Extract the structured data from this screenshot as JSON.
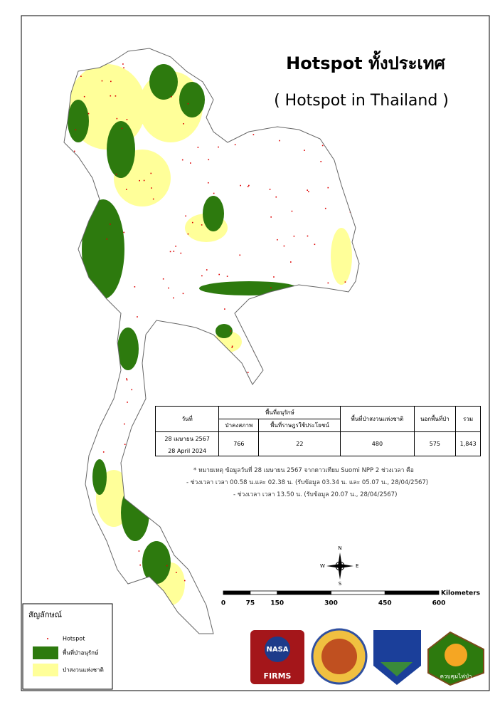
{
  "header": {
    "title": "Hotspot ทั้งประเทศ",
    "subtitle": "( Hotspot in Thailand )"
  },
  "table": {
    "headers": {
      "date": "วันที่",
      "conservation": "พื้นที่อนุรักษ์",
      "intact_forest": "ป่าคงสภาพ",
      "people_use": "พื้นที่ราษฎรใช้ประโยชน์",
      "reserve": "พื้นที่ป่าสงวนแห่งชาติ",
      "outside": "นอกพื้นที่ป่า",
      "total": "รวม"
    },
    "row": {
      "date_th": "28 เมษายน 2567",
      "date_en": "28 April 2024",
      "intact_forest": "766",
      "people_use": "22",
      "reserve": "480",
      "outside": "575",
      "total": "1,843"
    }
  },
  "notes": [
    "* หมายเหตุ ข้อมูลวันที่ 28 เมษายน 2567 จากดาวเทียม Suomi NPP 2 ช่วงเวลา คือ",
    "- ช่วงเวลา เวลา 00.58 น.และ 02.38 น. (รับข้อมูล 03.34 น. และ 05.07 น., 28/04/2567)",
    "- ช่วงเวลา เวลา 13.50 น. (รับข้อมูล 20.07 น., 28/04/2567)"
  ],
  "scale": {
    "ticks": [
      0,
      75,
      150,
      300,
      450,
      600
    ],
    "unit": "Kilometers"
  },
  "compass": {
    "n": "N",
    "s": "S",
    "e": "E",
    "w": "W"
  },
  "legend": {
    "title": "สัญลักษณ์",
    "items": [
      "Hotspot",
      "พื้นที่ป่าอนุรักษ์",
      "ป่าสงวนแห่งชาติ"
    ]
  },
  "logos": {
    "nasa": "NASA",
    "firms": "FIRMS",
    "fire": "ควบคุมไฟป่า"
  }
}
